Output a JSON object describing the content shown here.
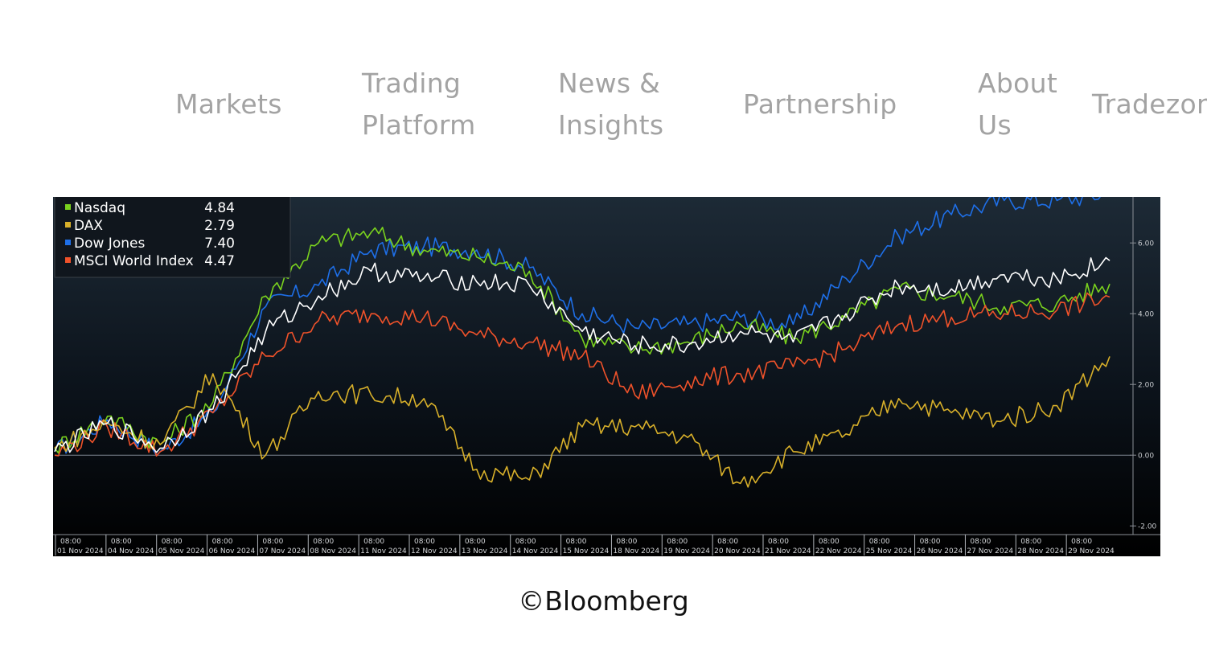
{
  "nav": {
    "markets": "Markets",
    "trading_1": "Trading",
    "trading_2": "Platform",
    "news_1": "News &",
    "news_2": "Insights",
    "partnership": "Partnership",
    "about_1": "About",
    "about_2": "Us",
    "tradezone": "Tradezone"
  },
  "caption": "©Bloomberg",
  "colors": {
    "nasdaq": "#7ad21e",
    "dax": "#d8b02a",
    "dow": "#1e6fe8",
    "msci": "#f0522a",
    "white_line": "#ffffff"
  },
  "chart_data": {
    "type": "line",
    "ylim": [
      -2.2,
      7.3
    ],
    "y_ticks": [
      "6.00",
      "4.00",
      "2.00",
      "0.00",
      "-2.00"
    ],
    "x_time_label": "08:00",
    "x_dates": [
      "01 Nov 2024",
      "04 Nov 2024",
      "05 Nov 2024",
      "06 Nov 2024",
      "07 Nov 2024",
      "08 Nov 2024",
      "11 Nov 2024",
      "12 Nov 2024",
      "13 Nov 2024",
      "14 Nov 2024",
      "15 Nov 2024",
      "18 Nov 2024",
      "19 Nov 2024",
      "20 Nov 2024",
      "21 Nov 2024",
      "22 Nov 2024",
      "25 Nov 2024",
      "26 Nov 2024",
      "27 Nov 2024",
      "28 Nov 2024",
      "29 Nov 2024"
    ],
    "legend": [
      {
        "name": "Nasdaq",
        "value": "4.84",
        "color": "#7ad21e"
      },
      {
        "name": "DAX",
        "value": "2.79",
        "color": "#d8b02a"
      },
      {
        "name": "Dow Jones",
        "value": "7.40",
        "color": "#1e6fe8"
      },
      {
        "name": "MSCI World Index",
        "value": "4.47",
        "color": "#f0522a"
      }
    ],
    "series": [
      {
        "name": "Dow Jones",
        "color": "#1e6fe8",
        "values": [
          0.1,
          1.0,
          0.1,
          1.2,
          4.2,
          4.8,
          5.8,
          5.9,
          5.8,
          5.3,
          4.0,
          3.6,
          3.7,
          3.9,
          3.7,
          5.0,
          6.2,
          6.8,
          7.2,
          7.2,
          7.4
        ]
      },
      {
        "name": "Nasdaq",
        "color": "#7ad21e",
        "values": [
          0.2,
          1.1,
          0.3,
          1.5,
          4.5,
          6.0,
          6.3,
          5.8,
          5.6,
          5.2,
          3.3,
          3.0,
          3.2,
          3.7,
          3.3,
          3.9,
          4.7,
          4.5,
          4.2,
          4.3,
          4.84
        ]
      },
      {
        "name": "MSCI World Index",
        "color": "#f0522a",
        "values": [
          0.0,
          0.8,
          0.1,
          1.2,
          2.8,
          3.8,
          4.0,
          3.9,
          3.4,
          3.2,
          2.8,
          1.7,
          2.1,
          2.3,
          2.5,
          3.0,
          3.7,
          3.9,
          4.0,
          4.1,
          4.47
        ]
      },
      {
        "name": "DAX",
        "color": "#d8b02a",
        "values": [
          0.2,
          0.9,
          0.3,
          2.3,
          0.0,
          1.8,
          1.7,
          1.6,
          -0.4,
          -0.7,
          0.8,
          0.8,
          0.5,
          -0.8,
          0.1,
          0.6,
          1.6,
          1.2,
          1.0,
          1.4,
          2.79
        ]
      },
      {
        "name": "",
        "color": "#ffffff",
        "values": [
          0.1,
          0.9,
          0.2,
          1.3,
          3.5,
          4.5,
          5.2,
          5.0,
          4.9,
          4.8,
          3.5,
          3.1,
          3.1,
          3.5,
          3.2,
          4.0,
          4.8,
          4.7,
          5.1,
          5.0,
          5.5
        ]
      }
    ]
  }
}
